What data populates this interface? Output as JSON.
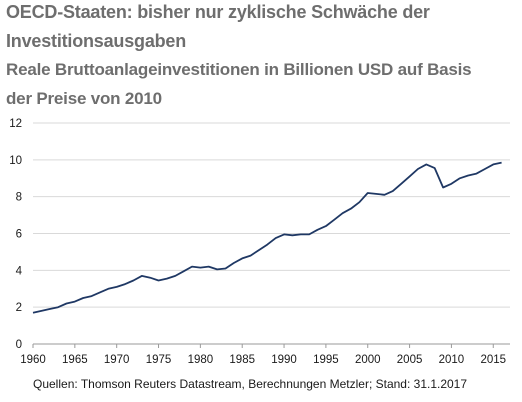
{
  "chart_data": {
    "type": "line",
    "title": "OECD-Staaten: bisher nur zyklische Schwäche der Investitionsausgaben",
    "title_lines": [
      "OECD-Staaten: bisher nur zyklische Schwäche der",
      "Investitionsausgaben"
    ],
    "subtitle": "Reale Bruttoanlageinvestitionen in Billionen USD auf Basis der Preise von 2010",
    "subtitle_lines": [
      "Reale Bruttoanlageinvestitionen in Billionen USD auf Basis",
      "der Preise von 2010"
    ],
    "xlabel": "",
    "ylabel": "",
    "xlim": [
      1960,
      2017
    ],
    "ylim": [
      0,
      12
    ],
    "x_ticks": [
      1960,
      1965,
      1970,
      1975,
      1980,
      1985,
      1990,
      1995,
      2000,
      2005,
      2010,
      2015
    ],
    "y_ticks": [
      0,
      2,
      4,
      6,
      8,
      10,
      12
    ],
    "grid": "horizontal",
    "line_color": "#1f3864",
    "grid_color": "#d9d9d9",
    "series": [
      {
        "x": [
          1960,
          1961,
          1962,
          1963,
          1964,
          1965,
          1966,
          1967,
          1968,
          1969,
          1970,
          1971,
          1972,
          1973,
          1974,
          1975,
          1976,
          1977,
          1978,
          1979,
          1980,
          1981,
          1982,
          1983,
          1984,
          1985,
          1986,
          1987,
          1988,
          1989,
          1990,
          1991,
          1992,
          1993,
          1994,
          1995,
          1996,
          1997,
          1998,
          1999,
          2000,
          2001,
          2002,
          2003,
          2004,
          2005,
          2006,
          2007,
          2008,
          2009,
          2010,
          2011,
          2012,
          2013,
          2014,
          2015,
          2016
        ],
        "y": [
          1.7,
          1.8,
          1.9,
          2.0,
          2.2,
          2.3,
          2.5,
          2.6,
          2.8,
          3.0,
          3.1,
          3.25,
          3.45,
          3.7,
          3.6,
          3.45,
          3.55,
          3.7,
          3.95,
          4.2,
          4.15,
          4.2,
          4.05,
          4.1,
          4.4,
          4.65,
          4.8,
          5.1,
          5.4,
          5.75,
          5.95,
          5.9,
          5.95,
          5.95,
          6.2,
          6.4,
          6.75,
          7.1,
          7.35,
          7.7,
          8.2,
          8.15,
          8.1,
          8.3,
          8.7,
          9.1,
          9.5,
          9.75,
          9.55,
          8.5,
          8.7,
          9.0,
          9.15,
          9.25,
          9.5,
          9.75,
          9.85
        ]
      }
    ]
  },
  "footer": {
    "source": "Quellen: Thomson Reuters Datastream, Berechnungen Metzler; Stand: 31.1.2017"
  }
}
